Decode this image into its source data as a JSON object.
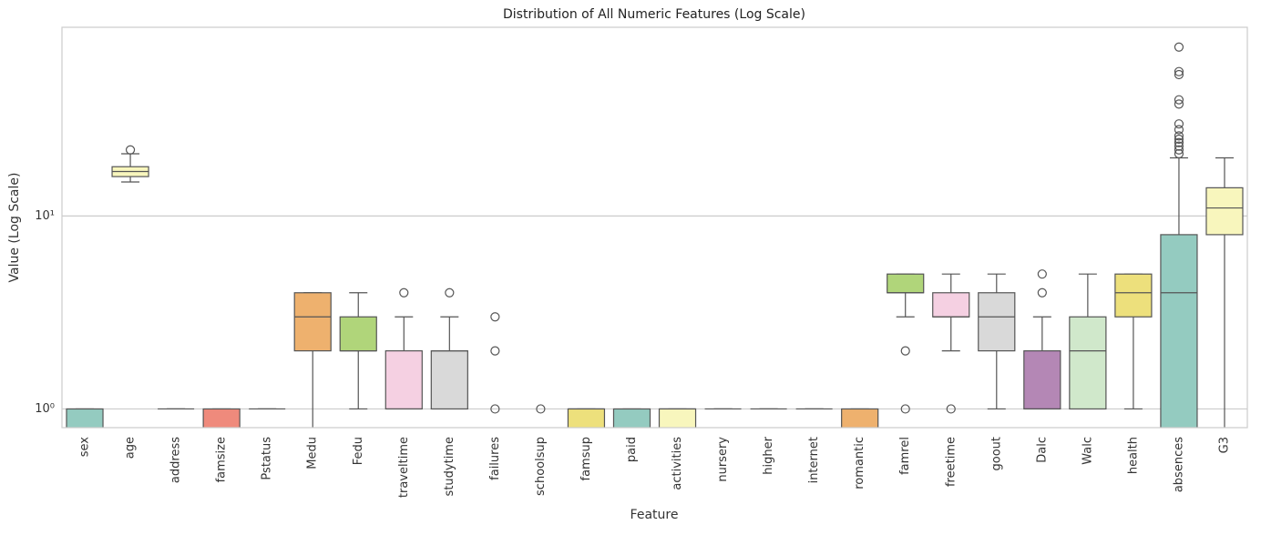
{
  "chart_data": {
    "type": "box",
    "title": "Distribution of All Numeric Features (Log Scale)",
    "x_label": "Feature",
    "y_label": "Value (Log Scale)",
    "log_y": true,
    "grid": true,
    "ylim": [
      0.8,
      95
    ],
    "yticks": [
      {
        "value": 1,
        "label": "10⁰"
      },
      {
        "value": 10,
        "label": "10¹"
      }
    ],
    "categories": [
      "sex",
      "age",
      "address",
      "famsize",
      "Pstatus",
      "Medu",
      "Fedu",
      "traveltime",
      "studytime",
      "failures",
      "schoolsup",
      "famsup",
      "paid",
      "activities",
      "nursery",
      "higher",
      "internet",
      "romantic",
      "famrel",
      "freetime",
      "goout",
      "Dalc",
      "Walc",
      "health",
      "absences",
      "G3"
    ],
    "boxes": [
      {
        "low": 0,
        "q1": 0,
        "median": 0,
        "q3": 1,
        "high": 1,
        "outliers": [],
        "color": "#94cbc0"
      },
      {
        "low": 15,
        "q1": 16,
        "median": 17,
        "q3": 18,
        "high": 21,
        "outliers": [
          22
        ],
        "color": "#f8f6bd"
      },
      {
        "low": 1,
        "q1": 1,
        "median": 1,
        "q3": 1,
        "high": 1,
        "outliers": [],
        "color": "#c3c0d8"
      },
      {
        "low": 0,
        "q1": 0,
        "median": 0,
        "q3": 1,
        "high": 1,
        "outliers": [],
        "color": "#ef8a7c"
      },
      {
        "low": 1,
        "q1": 1,
        "median": 1,
        "q3": 1,
        "high": 1,
        "outliers": [],
        "color": "#8fb5cf"
      },
      {
        "low": 0,
        "q1": 2,
        "median": 3,
        "q3": 4,
        "high": 4,
        "outliers": [],
        "color": "#eeb16e"
      },
      {
        "low": 1,
        "q1": 2,
        "median": 2,
        "q3": 3,
        "high": 4,
        "outliers": [],
        "color": "#b0d57a"
      },
      {
        "low": 1,
        "q1": 1,
        "median": 1,
        "q3": 2,
        "high": 3,
        "outliers": [
          4
        ],
        "color": "#f5d0e2"
      },
      {
        "low": 1,
        "q1": 1,
        "median": 2,
        "q3": 2,
        "high": 3,
        "outliers": [
          4
        ],
        "color": "#d9d9d9"
      },
      {
        "low": 0,
        "q1": 0,
        "median": 0,
        "q3": 0,
        "high": 0,
        "outliers": [
          1,
          2,
          3
        ],
        "color": "#b487b5"
      },
      {
        "low": 0,
        "q1": 0,
        "median": 0,
        "q3": 0,
        "high": 0,
        "outliers": [
          1
        ],
        "color": "#d0e8cb"
      },
      {
        "low": 0,
        "q1": 0,
        "median": 1,
        "q3": 1,
        "high": 1,
        "outliers": [],
        "color": "#ede07c"
      },
      {
        "low": 0,
        "q1": 0,
        "median": 0,
        "q3": 1,
        "high": 1,
        "outliers": [],
        "color": "#94cbc0"
      },
      {
        "low": 0,
        "q1": 0,
        "median": 1,
        "q3": 1,
        "high": 1,
        "outliers": [],
        "color": "#f8f6bd"
      },
      {
        "low": 1,
        "q1": 1,
        "median": 1,
        "q3": 1,
        "high": 1,
        "outliers": [],
        "color": "#c3c0d8"
      },
      {
        "low": 1,
        "q1": 1,
        "median": 1,
        "q3": 1,
        "high": 1,
        "outliers": [],
        "color": "#ef8a7c"
      },
      {
        "low": 1,
        "q1": 1,
        "median": 1,
        "q3": 1,
        "high": 1,
        "outliers": [],
        "color": "#8fb5cf"
      },
      {
        "low": 0,
        "q1": 0,
        "median": 0,
        "q3": 1,
        "high": 1,
        "outliers": [],
        "color": "#eeb16e"
      },
      {
        "low": 3,
        "q1": 4,
        "median": 4,
        "q3": 5,
        "high": 5,
        "outliers": [
          1,
          2
        ],
        "color": "#b0d57a"
      },
      {
        "low": 2,
        "q1": 3,
        "median": 3,
        "q3": 4,
        "high": 5,
        "outliers": [
          1
        ],
        "color": "#f5d0e2"
      },
      {
        "low": 1,
        "q1": 2,
        "median": 3,
        "q3": 4,
        "high": 5,
        "outliers": [],
        "color": "#d9d9d9"
      },
      {
        "low": 1,
        "q1": 1,
        "median": 1,
        "q3": 2,
        "high": 3,
        "outliers": [
          4,
          5
        ],
        "color": "#b487b5"
      },
      {
        "low": 1,
        "q1": 1,
        "median": 2,
        "q3": 3,
        "high": 5,
        "outliers": [],
        "color": "#d0e8cb"
      },
      {
        "low": 1,
        "q1": 3,
        "median": 4,
        "q3": 5,
        "high": 5,
        "outliers": [],
        "color": "#ede07c"
      },
      {
        "low": 0,
        "q1": 0,
        "median": 4,
        "q3": 8,
        "high": 20,
        "outliers": [
          21,
          22,
          23,
          24,
          25,
          26,
          28,
          30,
          38,
          40,
          54,
          56,
          75
        ],
        "color": "#94cbc0"
      },
      {
        "low": 0,
        "q1": 8,
        "median": 11,
        "q3": 14,
        "high": 20,
        "outliers": [],
        "color": "#f8f6bd"
      }
    ]
  }
}
